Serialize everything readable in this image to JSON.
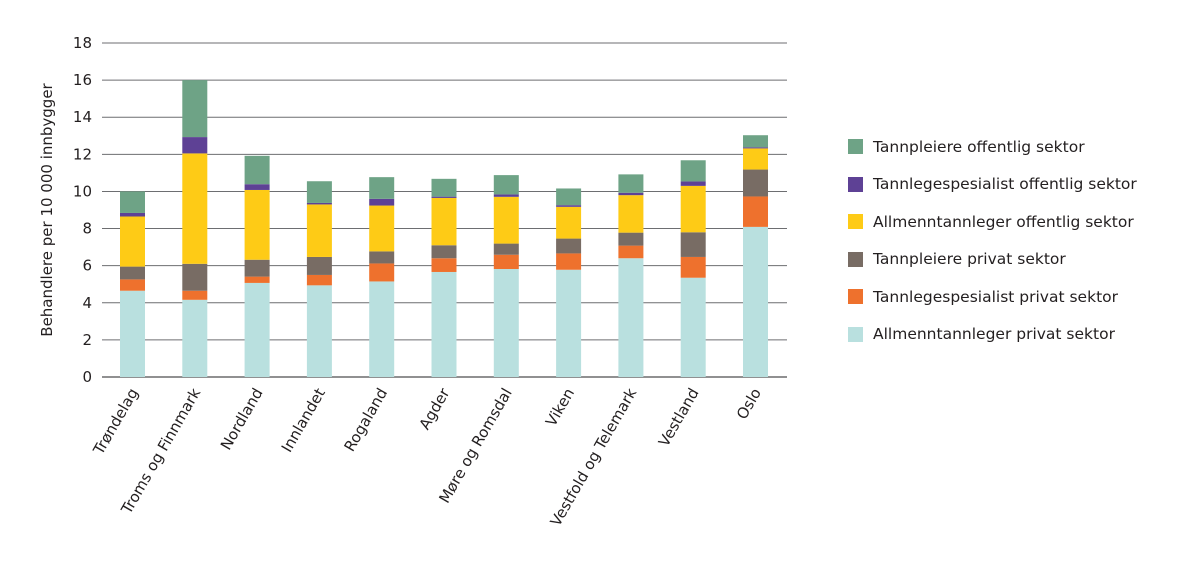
{
  "chart_data": {
    "type": "bar",
    "stacked": true,
    "title": "",
    "xlabel": "",
    "ylabel": "Behandlere per 10 000 innbygger",
    "ylim": [
      0,
      18
    ],
    "yticks": [
      0,
      2,
      4,
      6,
      8,
      10,
      12,
      14,
      16,
      18
    ],
    "grid": true,
    "legend_position": "right",
    "categories": [
      "Trøndelag",
      "Troms og Finnmark",
      "Nordland",
      "Innlandet",
      "Rogaland",
      "Agder",
      "Møre og Romsdal",
      "Viken",
      "Vestfold og Telemark",
      "Vestland",
      "Oslo"
    ],
    "series": [
      {
        "name": "Allmenntannleger privat sektor",
        "color": "#b9e0df",
        "values": [
          4.65,
          4.16,
          5.07,
          4.94,
          5.15,
          5.66,
          5.82,
          5.78,
          6.4,
          5.35,
          8.09
        ]
      },
      {
        "name": "Tannlegespesialist privat sektor",
        "color": "#ee712d",
        "values": [
          0.61,
          0.49,
          0.34,
          0.56,
          0.97,
          0.74,
          0.77,
          0.88,
          0.68,
          1.12,
          1.64
        ]
      },
      {
        "name": "Tannpleiere privat sektor",
        "color": "#786c64",
        "values": [
          0.69,
          1.45,
          0.91,
          0.97,
          0.65,
          0.7,
          0.6,
          0.8,
          0.7,
          1.33,
          1.45
        ]
      },
      {
        "name": "Allmenntannleger offentlig sektor",
        "color": "#fecb16",
        "values": [
          2.7,
          5.95,
          3.76,
          2.83,
          2.47,
          2.55,
          2.52,
          1.71,
          2.02,
          2.5,
          1.14
        ]
      },
      {
        "name": "Tannlegespesialist offentlig sektor",
        "color": "#5e4195",
        "values": [
          0.19,
          0.88,
          0.31,
          0.08,
          0.36,
          0.07,
          0.13,
          0.09,
          0.13,
          0.24,
          0.06
        ]
      },
      {
        "name": "Tannpleiere offentlig sektor",
        "color": "#6ea386",
        "values": [
          1.16,
          3.07,
          1.53,
          1.17,
          1.17,
          0.96,
          1.04,
          0.9,
          0.99,
          1.14,
          0.65
        ]
      }
    ],
    "legend": [
      {
        "label": "Tannpleiere offentlig sektor",
        "color": "#6ea386"
      },
      {
        "label": "Tannlegespesialist offentlig sektor",
        "color": "#5e4195"
      },
      {
        "label": "Allmenntannleger offentlig sektor",
        "color": "#fecb16"
      },
      {
        "label": "Tannpleiere privat sektor",
        "color": "#786c64"
      },
      {
        "label": "Tannlegespesialist privat sektor",
        "color": "#ee712d"
      },
      {
        "label": "Allmenntannleger privat sektor",
        "color": "#b9e0df"
      }
    ]
  }
}
